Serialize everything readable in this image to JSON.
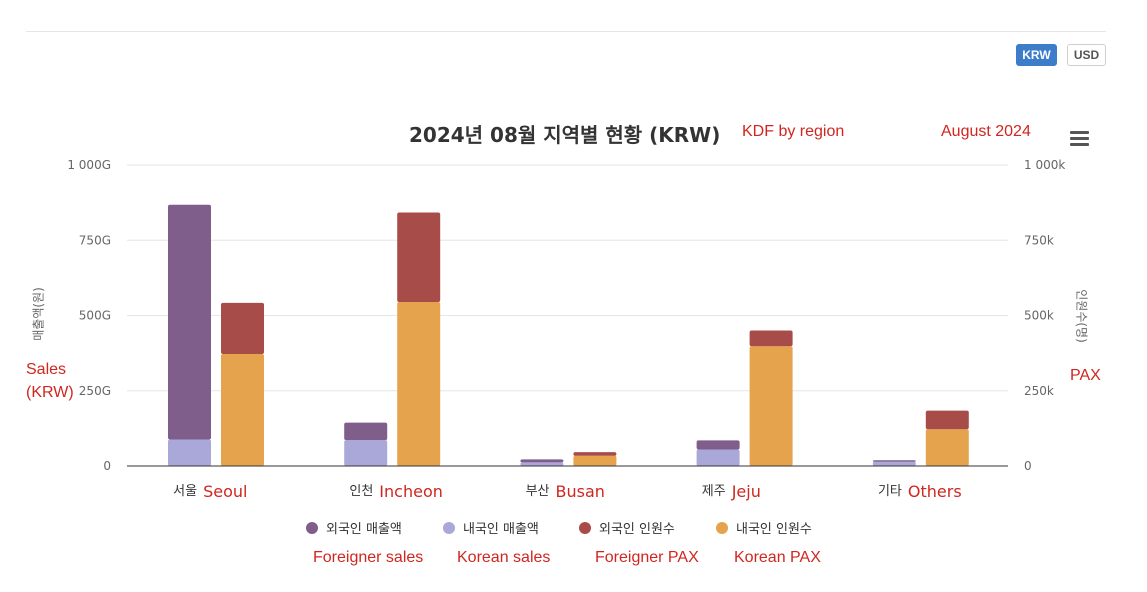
{
  "currency_toggle": {
    "krw": "KRW",
    "usd": "USD"
  },
  "chart_data": {
    "type": "bar",
    "stacked": true,
    "title": "2024년 08월 지역별 현황 (KRW)",
    "categories": [
      "서울",
      "인천",
      "부산",
      "제주",
      "기타"
    ],
    "left_axis": {
      "label": "매출액(원)",
      "ticks": [
        "0",
        "250G",
        "500G",
        "750G",
        "1 000G"
      ],
      "ylim": [
        0,
        1000
      ],
      "unit": "G"
    },
    "right_axis": {
      "label": "인원수(명)",
      "ticks": [
        "0",
        "250k",
        "500k",
        "750k",
        "1 000k"
      ],
      "ylim": [
        0,
        1000
      ],
      "unit": "k"
    },
    "sales_series": [
      {
        "name": "외국인 매출액",
        "color": "#7f5e8c",
        "values": [
          780,
          58,
          10,
          30,
          5
        ]
      },
      {
        "name": "내국인 매출액",
        "color": "#aaa8d8",
        "values": [
          88,
          86,
          12,
          55,
          14
        ]
      }
    ],
    "pax_series": [
      {
        "name": "외국인 인원수",
        "color": "#a84c4a",
        "values": [
          170,
          297,
          12,
          52,
          62
        ]
      },
      {
        "name": "내국인 인원수",
        "color": "#e6a34e",
        "values": [
          372,
          545,
          34,
          398,
          122
        ]
      }
    ],
    "legend": [
      "외국인 매출액",
      "내국인 매출액",
      "외국인 인원수",
      "내국인 인원수"
    ],
    "grid": true,
    "legend_position": "bottom"
  },
  "annotations": {
    "subtitle_en": "KDF by region",
    "month_en": "August 2024",
    "sales_en_line1": "Sales",
    "sales_en_line2": "(KRW)",
    "pax_en": "PAX",
    "cat_en": [
      "Seoul",
      "Incheon",
      "Busan",
      "Jeju",
      "Others"
    ],
    "legend_en": [
      "Foreigner sales",
      "Korean sales",
      "Foreigner PAX",
      "Korean PAX"
    ]
  }
}
